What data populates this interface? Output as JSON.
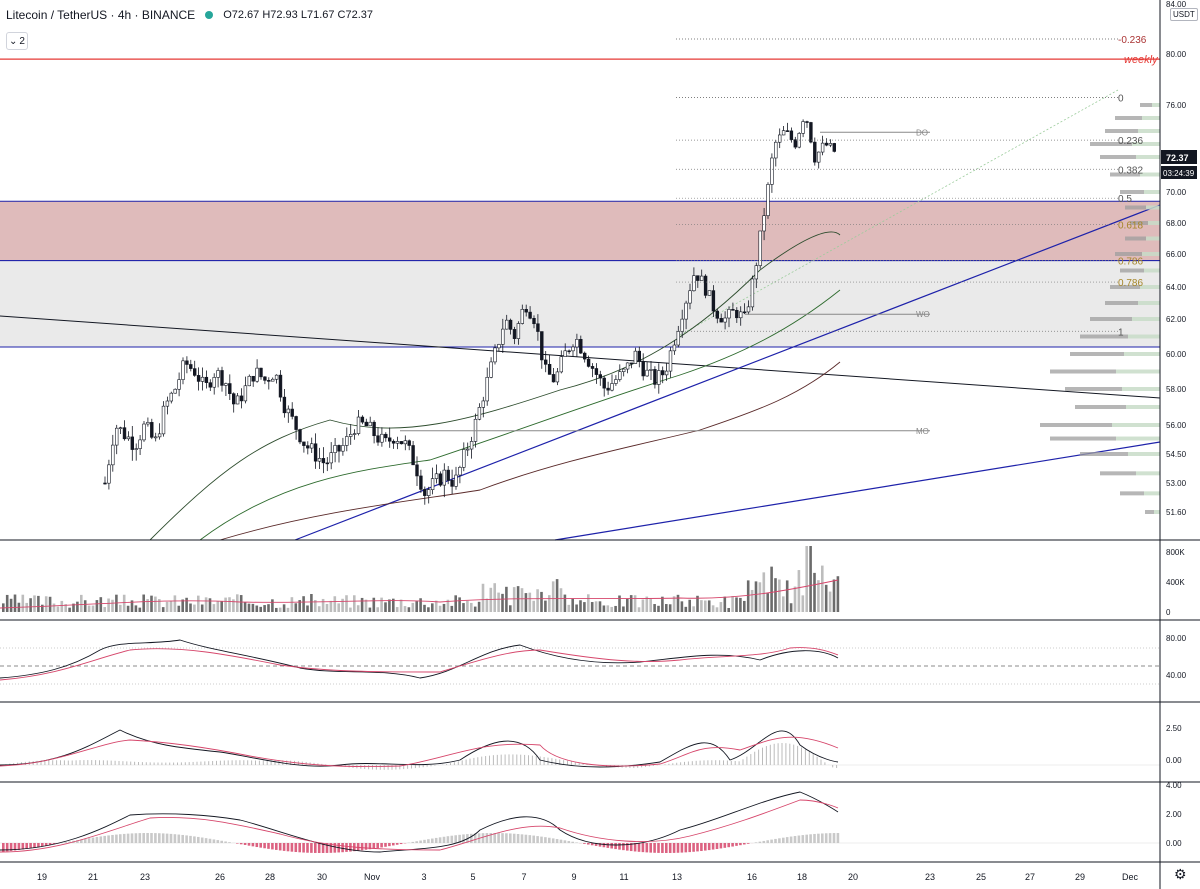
{
  "header": {
    "symbol": "Litecoin / TetherUS · 4h · BINANCE",
    "ohlc": "O72.67 H72.93 L71.67 C72.37",
    "indicator_button": "2",
    "currency_badge": "USDT"
  },
  "chart_data": {
    "type": "candlestick",
    "price_axis": {
      "ticks": [
        "84.00",
        "80.00",
        "76.00",
        "72.00",
        "70.00",
        "68.00",
        "66.00",
        "64.00",
        "62.00",
        "60.00",
        "58.00",
        "56.00",
        "54.50",
        "53.00",
        "51.60"
      ],
      "last_price": "72.37",
      "countdown": "03:24:39"
    },
    "x_axis": {
      "ticks": [
        "19",
        "21",
        "23",
        "26",
        "28",
        "30",
        "Nov",
        "3",
        "5",
        "7",
        "9",
        "11",
        "13",
        "16",
        "18",
        "20",
        "23",
        "25",
        "27",
        "29",
        "Dec"
      ]
    },
    "fib_levels": [
      {
        "label": "-0.236",
        "price": 81.2
      },
      {
        "label": "0",
        "price": 76.6
      },
      {
        "label": "0.236",
        "price": 73.3
      },
      {
        "label": "0.382",
        "price": 71.3
      },
      {
        "label": "0.5",
        "price": 69.6
      },
      {
        "label": "0.618",
        "price": 67.9
      },
      {
        "label": "0.786",
        "price": 65.6
      },
      {
        "label": "0.786",
        "price": 64.3
      },
      {
        "label": "1",
        "price": 61.3
      }
    ],
    "level_labels": [
      {
        "label": "DO",
        "price": 73.9
      },
      {
        "label": "WO",
        "price": 62.3
      },
      {
        "label": "MO",
        "price": 55.7
      },
      {
        "label": "weekly",
        "price": 79.6
      }
    ],
    "zones": [
      {
        "name": "upper-zone",
        "from": 65.6,
        "to": 69.4,
        "color": "#c98d8d"
      },
      {
        "name": "lower-zone",
        "from": 60.4,
        "to": 65.6,
        "color": "#e8e8e8"
      }
    ],
    "volume_axis": [
      "800K",
      "400K",
      "0"
    ],
    "rsi_axis": [
      "80.00",
      "40.00"
    ],
    "macd1_axis": [
      "2.50",
      "0.00"
    ],
    "macd2_axis": [
      "4.00",
      "2.00",
      "0.00"
    ],
    "colors": {
      "up": "#ffffff",
      "down": "#131722",
      "trend": "#1e22aa",
      "weekly": "#e53935",
      "signal": "#d6466b"
    }
  }
}
